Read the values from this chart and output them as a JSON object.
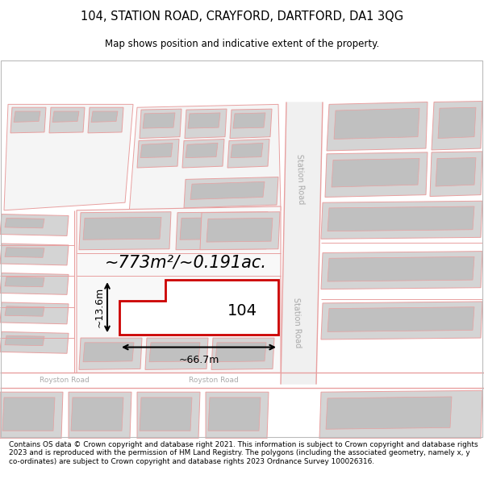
{
  "title_line1": "104, STATION ROAD, CRAYFORD, DARTFORD, DA1 3QG",
  "title_line2": "Map shows position and indicative extent of the property.",
  "footer_text": "Contains OS data © Crown copyright and database right 2021. This information is subject to Crown copyright and database rights 2023 and is reproduced with the permission of HM Land Registry. The polygons (including the associated geometry, namely x, y co-ordinates) are subject to Crown copyright and database rights 2023 Ordnance Survey 100026316.",
  "highlight_color": "#cc0000",
  "road_color": "#e8a0a0",
  "building_color": "#d4d4d4",
  "building_inner_color": "#c0c0c0",
  "bg_color": "#ffffff",
  "area_label": "~773m²/~0.191ac.",
  "width_label": "~66.7m",
  "height_label": "~13.6m",
  "number_label": "104",
  "road_label_station1": "Station Road",
  "road_label_station2": "Station Road",
  "road_label_royston1": "Royston Road",
  "road_label_royston2": "Royston Road"
}
